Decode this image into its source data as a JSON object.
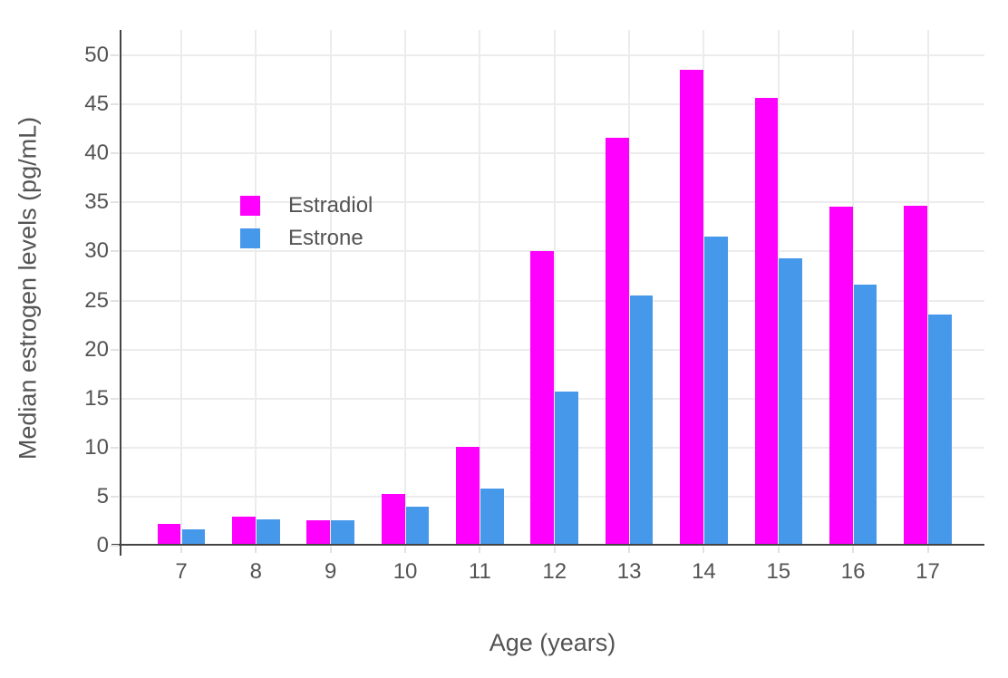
{
  "chart_data": {
    "type": "bar",
    "mode": "grouped",
    "title": "",
    "xlabel": "Age (years)",
    "ylabel": "Median estrogen levels (pg/mL)",
    "categories": [
      7,
      8,
      9,
      10,
      11,
      12,
      13,
      14,
      15,
      16,
      17
    ],
    "series": [
      {
        "name": "Estradiol",
        "color": "#FF00FF",
        "values": [
          2.2,
          3.0,
          2.6,
          5.3,
          10.1,
          30.0,
          41.6,
          48.5,
          45.7,
          34.6,
          34.7
        ]
      },
      {
        "name": "Estrone",
        "color": "#4698EA",
        "values": [
          1.7,
          2.7,
          2.6,
          4.0,
          5.8,
          15.7,
          25.5,
          31.5,
          29.3,
          26.6,
          23.6
        ]
      }
    ],
    "ylim": [
      0,
      52.6
    ],
    "yticks": [
      0,
      5,
      10,
      15,
      20,
      25,
      30,
      35,
      40,
      45,
      50
    ],
    "grid": true,
    "legend_position": "inside-top-left"
  },
  "theme": {
    "background": "#ffffff",
    "grid_color": "#ececec",
    "tick_color": "#e2e2e2",
    "axis_line_color": "#444444",
    "text_color": "#545454"
  }
}
